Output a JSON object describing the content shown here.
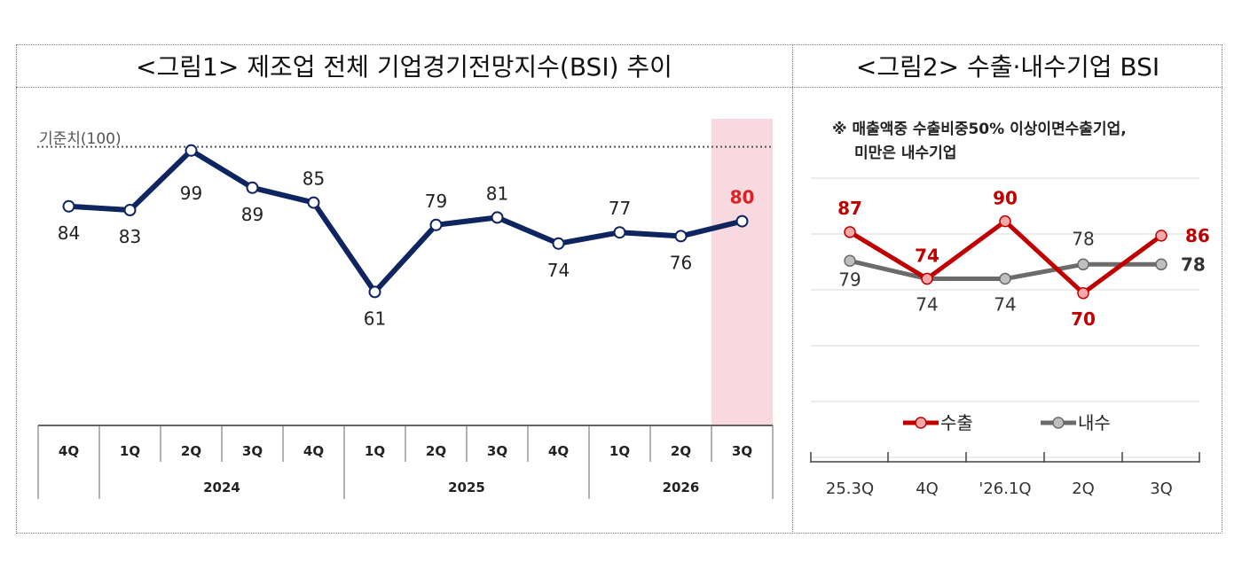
{
  "figure1": {
    "title": "<그림1> 제조업 전체 기업경기전망지수(BSI) 추이",
    "baseline_label": "기준치(100)",
    "colors": {
      "line": "#0f2560",
      "highlight_label": "#e02020",
      "highlight_band": "#f8d9df"
    },
    "chart_data": {
      "type": "line",
      "categories": [
        "4Q",
        "1Q",
        "2Q",
        "3Q",
        "4Q",
        "1Q",
        "2Q",
        "3Q",
        "4Q",
        "1Q",
        "2Q",
        "3Q"
      ],
      "year_groups": [
        {
          "year": "2024",
          "from": 1,
          "to": 4
        },
        {
          "year": "2025",
          "from": 5,
          "to": 8
        },
        {
          "year": "2026",
          "from": 9,
          "to": 11
        }
      ],
      "values": [
        84,
        83,
        99,
        89,
        85,
        61,
        79,
        81,
        74,
        77,
        76,
        80
      ],
      "label_values": [
        "84",
        "83",
        "99",
        "89",
        "85",
        "61",
        "79",
        "81",
        "74",
        "77",
        "76",
        "80"
      ],
      "baseline": 100,
      "highlight_index": 11
    }
  },
  "figure2": {
    "title": "<그림2> 수출·내수기업 BSI",
    "note_line1": "※ 매출액중 수출비중50% 이상이면수출기업,",
    "note_line2": "미만은 내수기업",
    "colors": {
      "export": "#c00000",
      "export_marker": "#f4a8a8",
      "domestic": "#6b6b6b",
      "domestic_marker": "#bfbfbf"
    },
    "chart_data": {
      "type": "line",
      "categories": [
        "25.3Q",
        "4Q",
        "'26.1Q",
        "2Q",
        "3Q"
      ],
      "series": [
        {
          "name": "수출",
          "values": [
            87,
            74,
            90,
            70,
            86
          ],
          "labels": [
            "87",
            "74",
            "90",
            "70",
            "86"
          ]
        },
        {
          "name": "내수",
          "values": [
            79,
            74,
            74,
            78,
            78
          ],
          "labels": [
            "79",
            "74",
            "74",
            "78",
            "78"
          ]
        }
      ]
    }
  }
}
